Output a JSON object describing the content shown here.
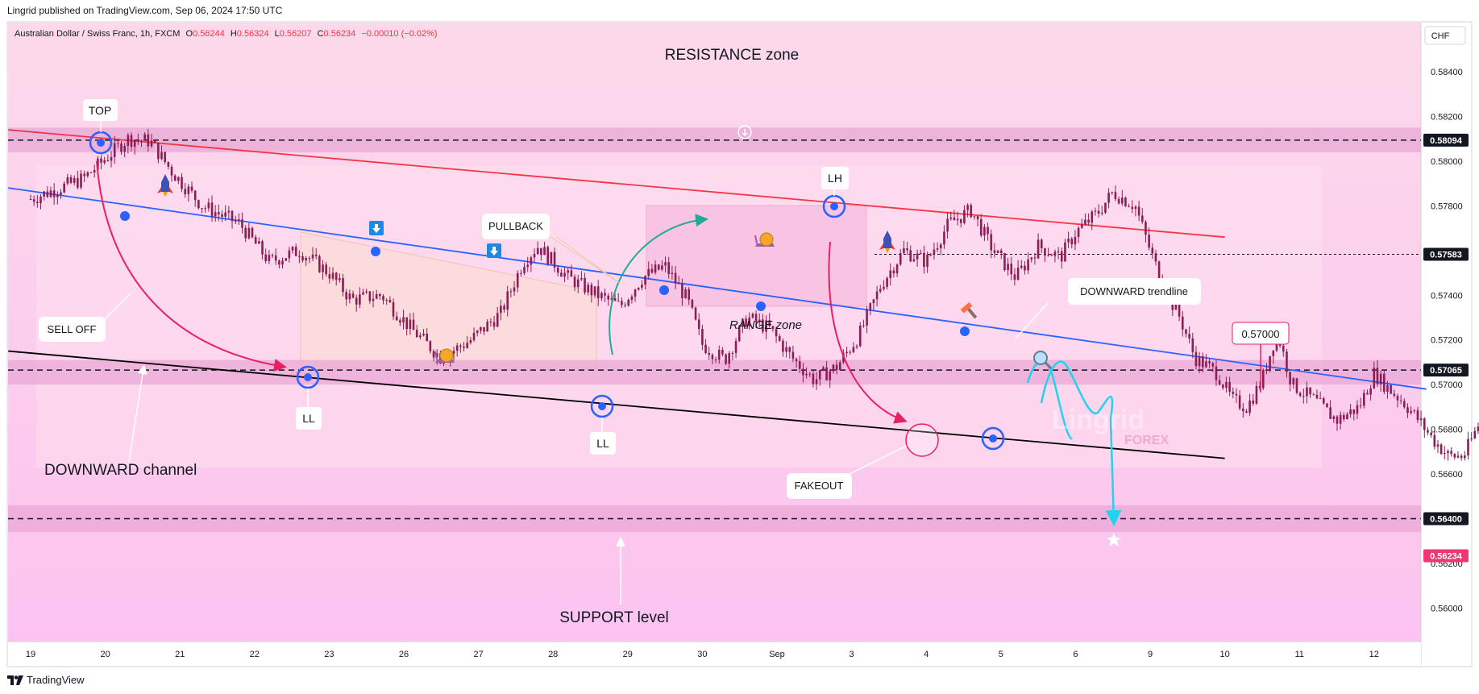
{
  "publisher_line": "Lingrid published on TradingView.com, Sep 06, 2024 17:50 UTC",
  "footer": {
    "brand": "TradingView"
  },
  "symbol_header": {
    "name": "Australian Dollar / Swiss Franc, 1h, FXCM",
    "open_label": "O",
    "open": "0.56244",
    "high_label": "H",
    "high": "0.56324",
    "low_label": "L",
    "low": "0.56207",
    "close_label": "C",
    "close": "0.56234",
    "change": "−0.00010 (−0.02%)"
  },
  "currency": "CHF",
  "colors": {
    "bg_top": "#fcd7ea",
    "bg_bottom": "#fcc2ef",
    "zone_band": "#e9a7d6",
    "candle": "#8a1e56",
    "red_line": "#f23645",
    "blue_line": "#2962ff",
    "black_line": "#000000",
    "price_tag": "#131722",
    "last_price_tag": "#f23674",
    "cyan": "#22d3ee",
    "teal_arrow": "#22ab94",
    "magenta_arrow": "#e91e63"
  },
  "chart_data": {
    "type": "candlestick",
    "symbol": "AUDCHF",
    "timeframe": "1h",
    "x_ticks": [
      "19",
      "20",
      "21",
      "22",
      "23",
      "26",
      "27",
      "28",
      "29",
      "30",
      "Sep",
      "3",
      "4",
      "5",
      "6",
      "9",
      "10",
      "11",
      "12"
    ],
    "y_ticks": [
      "0.58400",
      "0.58200",
      "0.58000",
      "0.57800",
      "0.57600",
      "0.57400",
      "0.57200",
      "0.57000",
      "0.56800",
      "0.56600",
      "0.56200",
      "0.56000"
    ],
    "ylim": [
      0.5585,
      0.5862
    ],
    "level_tags": [
      {
        "value": 0.58094,
        "label": "0.58094"
      },
      {
        "value": 0.57583,
        "label": "0.57583"
      },
      {
        "value": 0.57065,
        "label": "0.57065"
      },
      {
        "value": 0.564,
        "label": "0.56400"
      }
    ],
    "last_price": {
      "value": 0.56234,
      "label": "0.56234"
    },
    "zones": [
      {
        "name": "resistance",
        "from": 0.5804,
        "to": 0.5815
      },
      {
        "name": "mid",
        "from": 0.57,
        "to": 0.5711
      },
      {
        "name": "support",
        "from": 0.5634,
        "to": 0.5646
      }
    ],
    "price_path": [
      [
        0,
        0.5783
      ],
      [
        0.7,
        0.5792
      ],
      [
        1.3,
        0.581
      ],
      [
        1.6,
        0.5809
      ],
      [
        1.9,
        0.5795
      ],
      [
        2.3,
        0.578
      ],
      [
        2.8,
        0.5772
      ],
      [
        3.2,
        0.5755
      ],
      [
        3.6,
        0.576
      ],
      [
        4.0,
        0.575
      ],
      [
        4.3,
        0.5738
      ],
      [
        4.7,
        0.574
      ],
      [
        5.1,
        0.5725
      ],
      [
        5.5,
        0.5712
      ],
      [
        5.9,
        0.572
      ],
      [
        6.3,
        0.5732
      ],
      [
        6.6,
        0.5755
      ],
      [
        6.8,
        0.5762
      ],
      [
        7.2,
        0.5748
      ],
      [
        7.6,
        0.574
      ],
      [
        7.9,
        0.5735
      ],
      [
        8.2,
        0.5748
      ],
      [
        8.5,
        0.5753
      ],
      [
        8.8,
        0.5738
      ],
      [
        9.0,
        0.5718
      ],
      [
        9.3,
        0.5711
      ],
      [
        9.6,
        0.573
      ],
      [
        9.9,
        0.5725
      ],
      [
        10.2,
        0.5712
      ],
      [
        10.5,
        0.5702
      ],
      [
        10.8,
        0.5708
      ],
      [
        11.1,
        0.5722
      ],
      [
        11.4,
        0.5745
      ],
      [
        11.7,
        0.576
      ],
      [
        12.0,
        0.5755
      ],
      [
        12.3,
        0.5772
      ],
      [
        12.6,
        0.5778
      ],
      [
        12.9,
        0.576
      ],
      [
        13.2,
        0.5748
      ],
      [
        13.5,
        0.5762
      ],
      [
        13.8,
        0.5757
      ],
      [
        14.0,
        0.5768
      ],
      [
        14.3,
        0.5777
      ],
      [
        14.5,
        0.5786
      ],
      [
        14.8,
        0.578
      ],
      [
        15.0,
        0.576
      ],
      [
        15.2,
        0.5742
      ],
      [
        15.4,
        0.573
      ],
      [
        15.6,
        0.5712
      ],
      [
        15.9,
        0.5705
      ],
      [
        16.1,
        0.5693
      ],
      [
        16.3,
        0.569
      ],
      [
        16.5,
        0.5702
      ],
      [
        16.7,
        0.5724
      ],
      [
        16.9,
        0.57
      ],
      [
        17.2,
        0.5693
      ],
      [
        17.5,
        0.5684
      ],
      [
        17.8,
        0.569
      ],
      [
        18.0,
        0.5705
      ],
      [
        18.2,
        0.5698
      ],
      [
        18.4,
        0.5692
      ],
      [
        18.6,
        0.5684
      ],
      [
        18.8,
        0.5675
      ],
      [
        19.0,
        0.5668
      ],
      [
        19.2,
        0.5668
      ],
      [
        19.4,
        0.5682
      ],
      [
        19.5,
        0.57
      ],
      [
        19.6,
        0.565
      ],
      [
        19.7,
        0.5623
      ]
    ],
    "trendlines": [
      {
        "name": "resistance-trendline",
        "points": [
          [
            -0.3,
            0.5814
          ],
          [
            16.0,
            0.5766
          ]
        ]
      },
      {
        "name": "downward-trendline",
        "points": [
          [
            -0.3,
            0.5788
          ],
          [
            18.7,
            0.5698
          ]
        ]
      },
      {
        "name": "channel-bottom",
        "points": [
          [
            -0.3,
            0.5715
          ],
          [
            16.0,
            0.5667
          ]
        ]
      }
    ],
    "annotations": [
      {
        "text": "RESISTANCE zone"
      },
      {
        "text": "TOP"
      },
      {
        "text": "SELL OFF"
      },
      {
        "text": "DOWNWARD channel"
      },
      {
        "text": "LL"
      },
      {
        "text": "PULLBACK"
      },
      {
        "text": "LL"
      },
      {
        "text": "RANGE zone"
      },
      {
        "text": "LH"
      },
      {
        "text": "DOWNWARD trendline"
      },
      {
        "text": "0.57000"
      },
      {
        "text": "FAKEOUT"
      },
      {
        "text": "SUPPORT level"
      }
    ],
    "watermark": {
      "line1": "Lingrid",
      "line2": "FOREX"
    }
  }
}
